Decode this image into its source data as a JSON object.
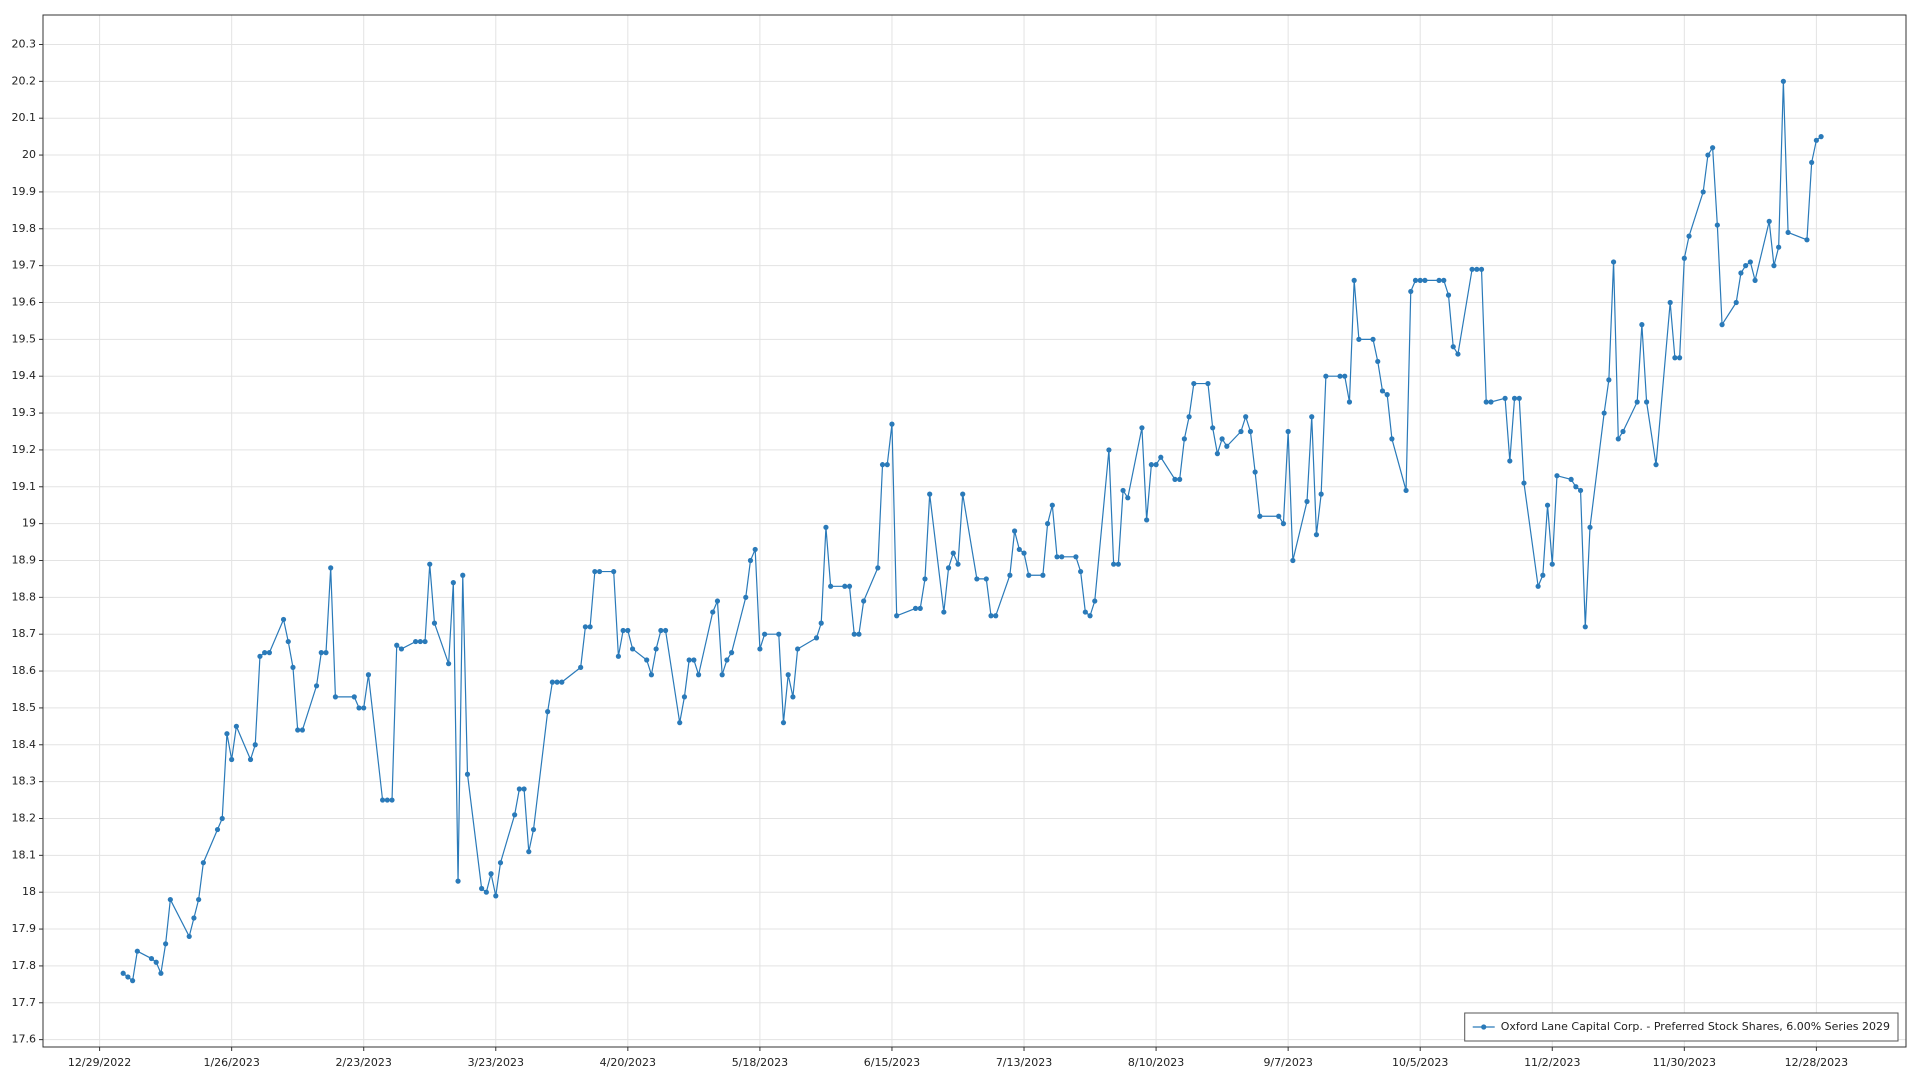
{
  "chart_data": {
    "type": "line",
    "x": [
      "1/3/2023",
      "1/4/2023",
      "1/5/2023",
      "1/6/2023",
      "1/9/2023",
      "1/10/2023",
      "1/11/2023",
      "1/12/2023",
      "1/13/2023",
      "1/17/2023",
      "1/18/2023",
      "1/19/2023",
      "1/20/2023",
      "1/23/2023",
      "1/24/2023",
      "1/25/2023",
      "1/26/2023",
      "1/27/2023",
      "1/30/2023",
      "1/31/2023",
      "2/1/2023",
      "2/2/2023",
      "2/3/2023",
      "2/6/2023",
      "2/7/2023",
      "2/8/2023",
      "2/9/2023",
      "2/10/2023",
      "2/13/2023",
      "2/14/2023",
      "2/15/2023",
      "2/16/2023",
      "2/17/2023",
      "2/21/2023",
      "2/22/2023",
      "2/23/2023",
      "2/24/2023",
      "2/27/2023",
      "2/28/2023",
      "3/1/2023",
      "3/2/2023",
      "3/3/2023",
      "3/6/2023",
      "3/7/2023",
      "3/8/2023",
      "3/9/2023",
      "3/10/2023",
      "3/13/2023",
      "3/14/2023",
      "3/15/2023",
      "3/16/2023",
      "3/17/2023",
      "3/20/2023",
      "3/21/2023",
      "3/22/2023",
      "3/23/2023",
      "3/24/2023",
      "3/27/2023",
      "3/28/2023",
      "3/29/2023",
      "3/30/2023",
      "3/31/2023",
      "4/3/2023",
      "4/4/2023",
      "4/5/2023",
      "4/6/2023",
      "4/10/2023",
      "4/11/2023",
      "4/12/2023",
      "4/13/2023",
      "4/14/2023",
      "4/17/2023",
      "4/18/2023",
      "4/19/2023",
      "4/20/2023",
      "4/21/2023",
      "4/24/2023",
      "4/25/2023",
      "4/26/2023",
      "4/27/2023",
      "4/28/2023",
      "5/1/2023",
      "5/2/2023",
      "5/3/2023",
      "5/4/2023",
      "5/5/2023",
      "5/8/2023",
      "5/9/2023",
      "5/10/2023",
      "5/11/2023",
      "5/12/2023",
      "5/15/2023",
      "5/16/2023",
      "5/17/2023",
      "5/18/2023",
      "5/19/2023",
      "5/22/2023",
      "5/23/2023",
      "5/24/2023",
      "5/25/2023",
      "5/26/2023",
      "5/30/2023",
      "5/31/2023",
      "6/1/2023",
      "6/2/2023",
      "6/5/2023",
      "6/6/2023",
      "6/7/2023",
      "6/8/2023",
      "6/9/2023",
      "6/12/2023",
      "6/13/2023",
      "6/14/2023",
      "6/15/2023",
      "6/16/2023",
      "6/20/2023",
      "6/21/2023",
      "6/22/2023",
      "6/23/2023",
      "6/26/2023",
      "6/27/2023",
      "6/28/2023",
      "6/29/2023",
      "6/30/2023",
      "7/3/2023",
      "7/5/2023",
      "7/6/2023",
      "7/7/2023",
      "7/10/2023",
      "7/11/2023",
      "7/12/2023",
      "7/13/2023",
      "7/14/2023",
      "7/17/2023",
      "7/18/2023",
      "7/19/2023",
      "7/20/2023",
      "7/21/2023",
      "7/24/2023",
      "7/25/2023",
      "7/26/2023",
      "7/27/2023",
      "7/28/2023",
      "7/31/2023",
      "8/1/2023",
      "8/2/2023",
      "8/3/2023",
      "8/4/2023",
      "8/7/2023",
      "8/8/2023",
      "8/9/2023",
      "8/10/2023",
      "8/11/2023",
      "8/14/2023",
      "8/15/2023",
      "8/16/2023",
      "8/17/2023",
      "8/18/2023",
      "8/21/2023",
      "8/22/2023",
      "8/23/2023",
      "8/24/2023",
      "8/25/2023",
      "8/28/2023",
      "8/29/2023",
      "8/30/2023",
      "8/31/2023",
      "9/1/2023",
      "9/5/2023",
      "9/6/2023",
      "9/7/2023",
      "9/8/2023",
      "9/11/2023",
      "9/12/2023",
      "9/13/2023",
      "9/14/2023",
      "9/15/2023",
      "9/18/2023",
      "9/19/2023",
      "9/20/2023",
      "9/21/2023",
      "9/22/2023",
      "9/25/2023",
      "9/26/2023",
      "9/27/2023",
      "9/28/2023",
      "9/29/2023",
      "10/2/2023",
      "10/3/2023",
      "10/4/2023",
      "10/5/2023",
      "10/6/2023",
      "10/9/2023",
      "10/10/2023",
      "10/11/2023",
      "10/12/2023",
      "10/13/2023",
      "10/16/2023",
      "10/17/2023",
      "10/18/2023",
      "10/19/2023",
      "10/20/2023",
      "10/23/2023",
      "10/24/2023",
      "10/25/2023",
      "10/26/2023",
      "10/27/2023",
      "10/30/2023",
      "10/31/2023",
      "11/1/2023",
      "11/2/2023",
      "11/3/2023",
      "11/6/2023",
      "11/7/2023",
      "11/8/2023",
      "11/9/2023",
      "11/10/2023",
      "11/13/2023",
      "11/14/2023",
      "11/15/2023",
      "11/16/2023",
      "11/17/2023",
      "11/20/2023",
      "11/21/2023",
      "11/22/2023",
      "11/24/2023",
      "11/27/2023",
      "11/28/2023",
      "11/29/2023",
      "11/30/2023",
      "12/1/2023",
      "12/4/2023",
      "12/5/2023",
      "12/6/2023",
      "12/7/2023",
      "12/8/2023",
      "12/11/2023",
      "12/12/2023",
      "12/13/2023",
      "12/14/2023",
      "12/15/2023",
      "12/18/2023",
      "12/19/2023",
      "12/20/2023",
      "12/21/2023",
      "12/22/2023",
      "12/26/2023",
      "12/27/2023",
      "12/28/2023",
      "12/29/2023"
    ],
    "series": [
      {
        "name": "Oxford Lane Capital Corp. - Preferred Stock Shares, 6.00% Series 2029",
        "color": "#2a7ab9",
        "values": [
          17.78,
          17.77,
          17.76,
          17.84,
          17.82,
          17.81,
          17.78,
          17.86,
          17.98,
          17.88,
          17.93,
          17.98,
          18.08,
          18.17,
          18.2,
          18.43,
          18.36,
          18.45,
          18.36,
          18.4,
          18.64,
          18.65,
          18.65,
          18.74,
          18.68,
          18.61,
          18.44,
          18.44,
          18.56,
          18.65,
          18.65,
          18.88,
          18.53,
          18.53,
          18.5,
          18.5,
          18.59,
          18.25,
          18.25,
          18.25,
          18.67,
          18.66,
          18.68,
          18.68,
          18.68,
          18.89,
          18.73,
          18.62,
          18.84,
          18.03,
          18.86,
          18.32,
          18.01,
          18.0,
          18.05,
          17.99,
          18.08,
          18.21,
          18.28,
          18.28,
          18.11,
          18.17,
          18.49,
          18.57,
          18.57,
          18.57,
          18.61,
          18.72,
          18.72,
          18.87,
          18.87,
          18.87,
          18.64,
          18.71,
          18.71,
          18.66,
          18.63,
          18.59,
          18.66,
          18.71,
          18.71,
          18.46,
          18.53,
          18.63,
          18.63,
          18.59,
          18.76,
          18.79,
          18.59,
          18.63,
          18.65,
          18.8,
          18.9,
          18.93,
          18.66,
          18.7,
          18.7,
          18.46,
          18.59,
          18.53,
          18.66,
          18.69,
          18.73,
          18.99,
          18.83,
          18.83,
          18.83,
          18.7,
          18.7,
          18.79,
          18.88,
          19.16,
          19.16,
          19.27,
          18.75,
          18.77,
          18.77,
          18.85,
          19.08,
          18.76,
          18.88,
          18.92,
          18.89,
          19.08,
          18.85,
          18.85,
          18.75,
          18.75,
          18.86,
          18.98,
          18.93,
          18.92,
          18.86,
          18.86,
          19.0,
          19.05,
          18.91,
          18.91,
          18.91,
          18.87,
          18.76,
          18.75,
          18.79,
          19.2,
          18.89,
          18.89,
          19.09,
          19.07,
          19.26,
          19.01,
          19.16,
          19.16,
          19.18,
          19.12,
          19.12,
          19.23,
          19.29,
          19.38,
          19.38,
          19.26,
          19.19,
          19.23,
          19.21,
          19.25,
          19.29,
          19.25,
          19.14,
          19.02,
          19.02,
          19.0,
          19.25,
          18.9,
          19.06,
          19.29,
          18.97,
          19.08,
          19.4,
          19.4,
          19.4,
          19.33,
          19.66,
          19.5,
          19.5,
          19.44,
          19.36,
          19.35,
          19.23,
          19.09,
          19.63,
          19.66,
          19.66,
          19.66,
          19.66,
          19.66,
          19.62,
          19.48,
          19.46,
          19.69,
          19.69,
          19.69,
          19.33,
          19.33,
          19.34,
          19.17,
          19.34,
          19.34,
          19.11,
          18.83,
          18.86,
          19.05,
          18.89,
          19.13,
          19.12,
          19.1,
          19.09,
          18.72,
          18.99,
          19.3,
          19.39,
          19.71,
          19.23,
          19.25,
          19.33,
          19.54,
          19.33,
          19.16,
          19.6,
          19.45,
          19.45,
          19.72,
          19.78,
          19.9,
          20.0,
          20.02,
          19.81,
          19.54,
          19.6,
          19.68,
          19.7,
          19.71,
          19.66,
          19.82,
          19.7,
          19.75,
          20.2,
          19.79,
          19.77,
          19.98,
          20.04,
          20.05
        ]
      }
    ],
    "xlim": [
      "12/17/2022",
      "1/16/2024"
    ],
    "xticks": [
      "12/29/2022",
      "1/26/2023",
      "2/23/2023",
      "3/23/2023",
      "4/20/2023",
      "5/18/2023",
      "6/15/2023",
      "7/13/2023",
      "8/10/2023",
      "9/7/2023",
      "10/5/2023",
      "11/2/2023",
      "11/30/2023",
      "12/28/2023"
    ],
    "ylim": [
      17.58,
      20.38
    ],
    "yticks": [
      17.6,
      17.7,
      17.8,
      17.9,
      18,
      18.1,
      18.2,
      18.3,
      18.4,
      18.5,
      18.6,
      18.7,
      18.8,
      18.9,
      19,
      19.1,
      19.2,
      19.3,
      19.4,
      19.5,
      19.6,
      19.7,
      19.8,
      19.9,
      20,
      20.1,
      20.2,
      20.3
    ],
    "grid": true,
    "legend": "lower right"
  }
}
